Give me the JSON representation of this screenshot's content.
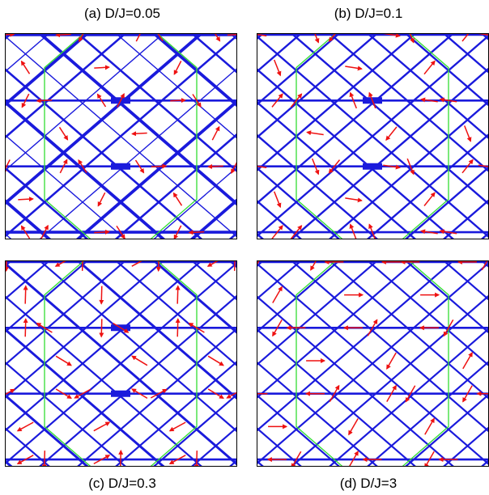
{
  "panels": [
    {
      "label": "(a) D/J=0.05",
      "variant": "a",
      "arrow_scale": 0.42
    },
    {
      "label": "(b) D/J=0.1",
      "variant": "b",
      "arrow_scale": 0.47
    },
    {
      "label": "(c) D/J=0.3",
      "variant": "c",
      "arrow_scale": 0.5
    },
    {
      "label": "(d) D/J=3",
      "variant": "d",
      "arrow_scale": 0.52
    }
  ],
  "colors": {
    "bond": "#1a1adc",
    "arrow": "#ee1111",
    "hexagon": "#33dd33",
    "frame": "#000000"
  }
}
